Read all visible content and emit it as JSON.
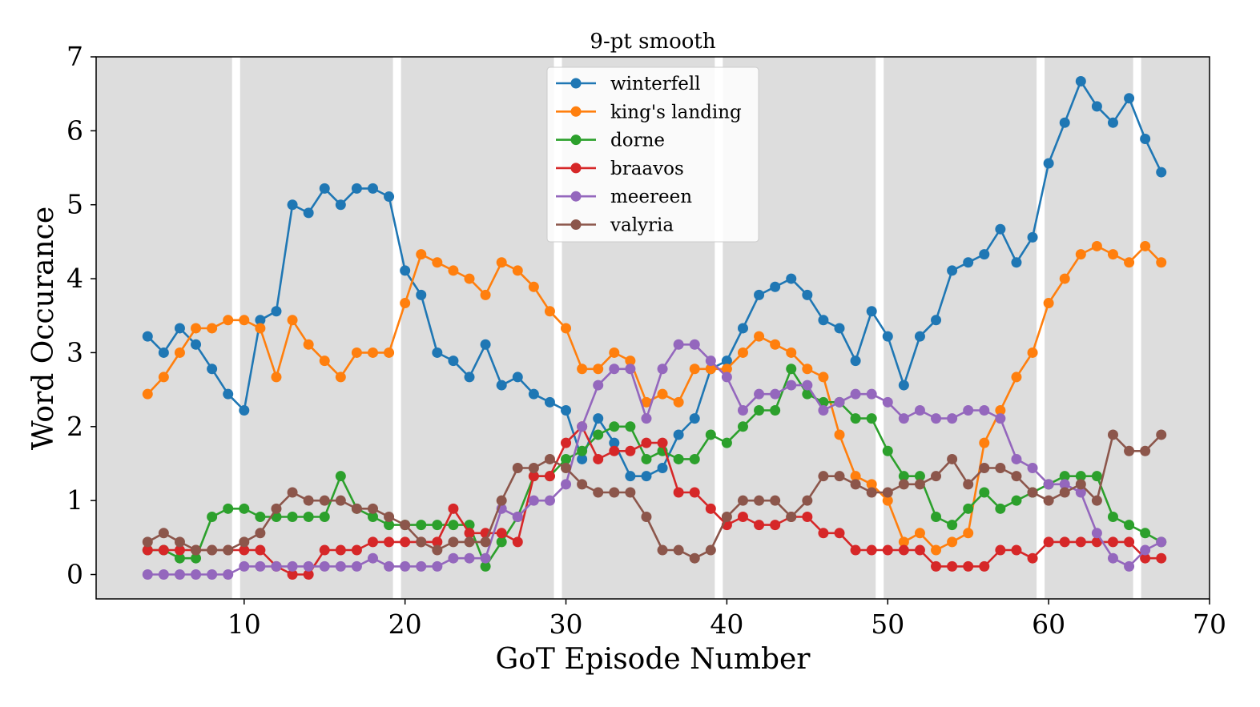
{
  "chart_data": {
    "type": "line",
    "title": "9-pt smooth",
    "xlabel": "GoT Episode Number",
    "ylabel": "Word Occurance",
    "xlim": [
      0.8,
      70.0
    ],
    "ylim": [
      -0.33,
      7.0
    ],
    "xticks": [
      10,
      20,
      30,
      40,
      50,
      60,
      70
    ],
    "yticks": [
      0,
      1,
      2,
      3,
      4,
      5,
      6,
      7
    ],
    "grid": false,
    "legend_position": "top-center",
    "background_color": "#dddddd",
    "season_breaks": [
      9.5,
      19.5,
      29.5,
      39.5,
      49.5,
      59.5,
      65.5
    ],
    "x": [
      4,
      5,
      6,
      7,
      8,
      9,
      10,
      11,
      12,
      13,
      14,
      15,
      16,
      17,
      18,
      19,
      20,
      21,
      22,
      23,
      24,
      25,
      26,
      27,
      28,
      29,
      30,
      31,
      32,
      33,
      34,
      35,
      36,
      37,
      38,
      39,
      40,
      41,
      42,
      43,
      44,
      45,
      46,
      47,
      48,
      49,
      50,
      51,
      52,
      53,
      54,
      55,
      56,
      57,
      58,
      59,
      60,
      61,
      62,
      63,
      64,
      65,
      66,
      67
    ],
    "series": [
      {
        "name": "winterfell",
        "color": "#1f77b4",
        "values": [
          3.22,
          3.0,
          3.33,
          3.11,
          2.78,
          2.44,
          2.22,
          3.44,
          3.56,
          5.0,
          4.89,
          5.22,
          5.0,
          5.22,
          5.22,
          5.11,
          4.11,
          3.78,
          3.0,
          2.89,
          2.67,
          3.11,
          2.56,
          2.67,
          2.44,
          2.33,
          2.22,
          1.56,
          2.11,
          1.78,
          1.33,
          1.33,
          1.44,
          1.89,
          2.11,
          2.78,
          2.89,
          3.33,
          3.78,
          3.89,
          4.0,
          3.78,
          3.44,
          3.33,
          2.89,
          3.56,
          3.22,
          2.56,
          3.22,
          3.44,
          4.11,
          4.22,
          4.33,
          4.67,
          4.22,
          4.56,
          5.56,
          6.11,
          6.67,
          6.33,
          6.11,
          6.44,
          5.89,
          5.44
        ]
      },
      {
        "name": "king's landing",
        "color": "#ff7f0e",
        "values": [
          2.44,
          2.67,
          3.0,
          3.33,
          3.33,
          3.44,
          3.44,
          3.33,
          2.67,
          3.44,
          3.11,
          2.89,
          2.67,
          3.0,
          3.0,
          3.0,
          3.67,
          4.33,
          4.22,
          4.11,
          4.0,
          3.78,
          4.22,
          4.11,
          3.89,
          3.56,
          3.33,
          2.78,
          2.78,
          3.0,
          2.89,
          2.33,
          2.44,
          2.33,
          2.78,
          2.78,
          2.78,
          3.0,
          3.22,
          3.11,
          3.0,
          2.78,
          2.67,
          1.89,
          1.33,
          1.22,
          1.0,
          0.44,
          0.56,
          0.33,
          0.44,
          0.56,
          1.78,
          2.22,
          2.67,
          3.0,
          3.67,
          4.0,
          4.33,
          4.44,
          4.33,
          4.22,
          4.44,
          4.22
        ]
      },
      {
        "name": "dorne",
        "color": "#2ca02c",
        "values": [
          0.33,
          0.33,
          0.22,
          0.22,
          0.78,
          0.89,
          0.89,
          0.78,
          0.78,
          0.78,
          0.78,
          0.78,
          1.33,
          0.89,
          0.78,
          0.67,
          0.67,
          0.67,
          0.67,
          0.67,
          0.67,
          0.11,
          0.44,
          0.78,
          1.33,
          1.33,
          1.56,
          1.67,
          1.89,
          2.0,
          2.0,
          1.56,
          1.67,
          1.56,
          1.56,
          1.89,
          1.78,
          2.0,
          2.22,
          2.22,
          2.78,
          2.44,
          2.33,
          2.33,
          2.11,
          2.11,
          1.67,
          1.33,
          1.33,
          0.78,
          0.67,
          0.89,
          1.11,
          0.89,
          1.0,
          1.11,
          1.22,
          1.33,
          1.33,
          1.33,
          0.78,
          0.67,
          0.56,
          0.44
        ]
      },
      {
        "name": "braavos",
        "color": "#d62728",
        "values": [
          0.33,
          0.33,
          0.33,
          0.33,
          0.33,
          0.33,
          0.33,
          0.33,
          0.11,
          0.0,
          0.0,
          0.33,
          0.33,
          0.33,
          0.44,
          0.44,
          0.44,
          0.44,
          0.44,
          0.89,
          0.56,
          0.56,
          0.56,
          0.44,
          1.33,
          1.33,
          1.78,
          2.0,
          1.56,
          1.67,
          1.67,
          1.78,
          1.78,
          1.11,
          1.11,
          0.89,
          0.67,
          0.78,
          0.67,
          0.67,
          0.78,
          0.78,
          0.56,
          0.56,
          0.33,
          0.33,
          0.33,
          0.33,
          0.33,
          0.11,
          0.11,
          0.11,
          0.11,
          0.33,
          0.33,
          0.22,
          0.44,
          0.44,
          0.44,
          0.44,
          0.44,
          0.44,
          0.22,
          0.22
        ]
      },
      {
        "name": "meereen",
        "color": "#9467bd",
        "values": [
          0.0,
          0.0,
          0.0,
          0.0,
          0.0,
          0.0,
          0.11,
          0.11,
          0.11,
          0.11,
          0.11,
          0.11,
          0.11,
          0.11,
          0.22,
          0.11,
          0.11,
          0.11,
          0.11,
          0.22,
          0.22,
          0.22,
          0.89,
          0.78,
          1.0,
          1.0,
          1.22,
          2.0,
          2.56,
          2.78,
          2.78,
          2.11,
          2.78,
          3.11,
          3.11,
          2.89,
          2.67,
          2.22,
          2.44,
          2.44,
          2.56,
          2.56,
          2.22,
          2.33,
          2.44,
          2.44,
          2.33,
          2.11,
          2.22,
          2.11,
          2.11,
          2.22,
          2.22,
          2.11,
          1.56,
          1.44,
          1.22,
          1.22,
          1.11,
          0.56,
          0.22,
          0.11,
          0.33,
          0.44
        ]
      },
      {
        "name": "valyria",
        "color": "#8c564b",
        "values": [
          0.44,
          0.56,
          0.44,
          0.33,
          0.33,
          0.33,
          0.44,
          0.56,
          0.89,
          1.11,
          1.0,
          1.0,
          1.0,
          0.89,
          0.89,
          0.78,
          0.67,
          0.44,
          0.33,
          0.44,
          0.44,
          0.44,
          1.0,
          1.44,
          1.44,
          1.56,
          1.44,
          1.22,
          1.11,
          1.11,
          1.11,
          0.78,
          0.33,
          0.33,
          0.22,
          0.33,
          0.78,
          1.0,
          1.0,
          1.0,
          0.78,
          1.0,
          1.33,
          1.33,
          1.22,
          1.11,
          1.11,
          1.22,
          1.22,
          1.33,
          1.56,
          1.22,
          1.44,
          1.44,
          1.33,
          1.11,
          1.0,
          1.11,
          1.22,
          1.0,
          1.89,
          1.67,
          1.67,
          1.89
        ]
      }
    ]
  }
}
